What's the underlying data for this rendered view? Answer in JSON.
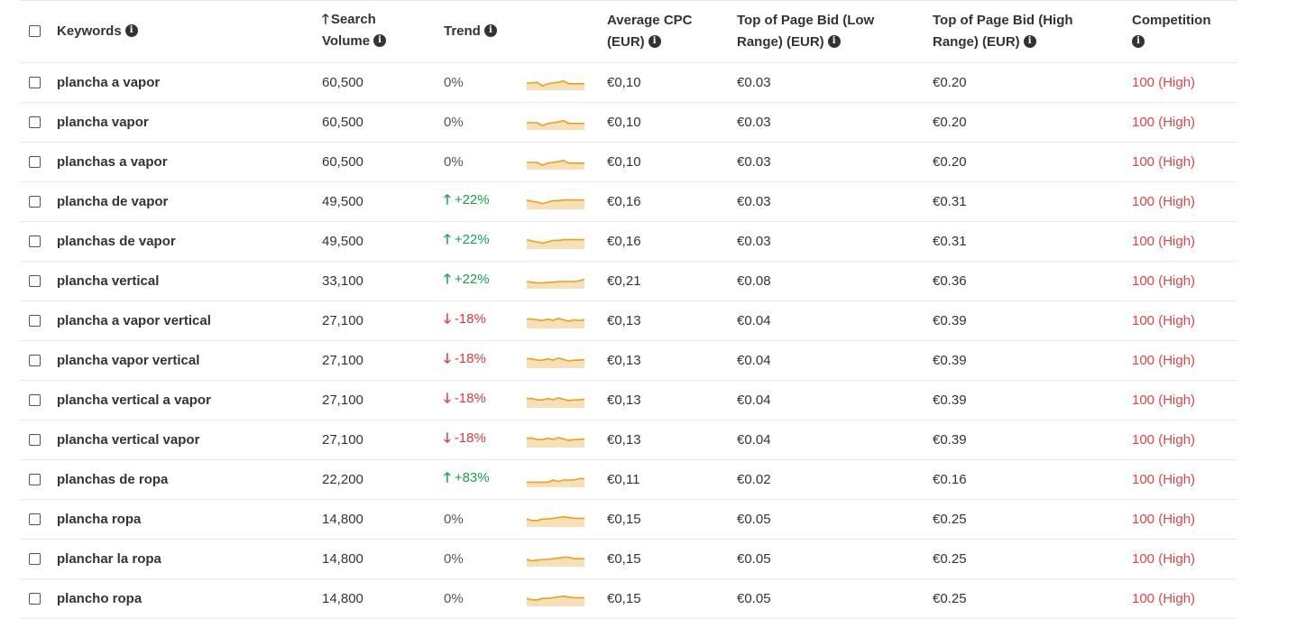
{
  "headers": {
    "keywords": "Keywords",
    "search_volume_line1": "Search",
    "search_volume_line2": "Volume",
    "trend": "Trend",
    "avg_cpc_line1": "Average CPC",
    "avg_cpc_line2": "(EUR)",
    "low_bid_line1": "Top of Page Bid (Low",
    "low_bid_line2": "Range) (EUR)",
    "high_bid_line1": "Top of Page Bid (High",
    "high_bid_line2": "Range) (EUR)",
    "competition": "Competition"
  },
  "icons": {
    "info": "info-icon",
    "sort": "arrow-up-icon",
    "trend_up": "arrow-up-icon",
    "trend_down": "arrow-down-icon"
  },
  "colors": {
    "trend_up": "#16a34a",
    "trend_down": "#dc3b3b",
    "competition_high": "#e04545",
    "sparkline_line": "#e8a21c",
    "sparkline_fill": "#f7dfb8"
  },
  "rows": [
    {
      "keyword": "plancha a vapor",
      "volume": "60,500",
      "trend": "0%",
      "dir": "flat",
      "cpc": "€0,10",
      "low": "€0.03",
      "high": "€0.20",
      "competition": "100 (High)",
      "spark": [
        0.5,
        0.5,
        0.45,
        0.7,
        0.55,
        0.5,
        0.45,
        0.35,
        0.55,
        0.55,
        0.55,
        0.55
      ]
    },
    {
      "keyword": "plancha vapor",
      "volume": "60,500",
      "trend": "0%",
      "dir": "flat",
      "cpc": "€0,10",
      "low": "€0.03",
      "high": "€0.20",
      "competition": "100 (High)",
      "spark": [
        0.5,
        0.5,
        0.5,
        0.7,
        0.55,
        0.5,
        0.45,
        0.35,
        0.55,
        0.55,
        0.55,
        0.55
      ]
    },
    {
      "keyword": "planchas a vapor",
      "volume": "60,500",
      "trend": "0%",
      "dir": "flat",
      "cpc": "€0,10",
      "low": "€0.03",
      "high": "€0.20",
      "competition": "100 (High)",
      "spark": [
        0.5,
        0.5,
        0.5,
        0.7,
        0.55,
        0.5,
        0.45,
        0.35,
        0.55,
        0.55,
        0.55,
        0.55
      ]
    },
    {
      "keyword": "plancha de vapor",
      "volume": "49,500",
      "trend": "+22%",
      "dir": "up",
      "cpc": "€0,16",
      "low": "€0.03",
      "high": "€0.31",
      "competition": "100 (High)",
      "spark": [
        0.35,
        0.45,
        0.5,
        0.6,
        0.5,
        0.4,
        0.4,
        0.35,
        0.35,
        0.35,
        0.35,
        0.35
      ]
    },
    {
      "keyword": "planchas de vapor",
      "volume": "49,500",
      "trend": "+22%",
      "dir": "up",
      "cpc": "€0,16",
      "low": "€0.03",
      "high": "€0.31",
      "competition": "100 (High)",
      "spark": [
        0.35,
        0.45,
        0.5,
        0.6,
        0.5,
        0.4,
        0.4,
        0.35,
        0.35,
        0.35,
        0.35,
        0.35
      ]
    },
    {
      "keyword": "plancha vertical",
      "volume": "33,100",
      "trend": "+22%",
      "dir": "up",
      "cpc": "€0,21",
      "low": "€0.08",
      "high": "€0.36",
      "competition": "100 (High)",
      "spark": [
        0.5,
        0.55,
        0.6,
        0.6,
        0.55,
        0.55,
        0.5,
        0.5,
        0.5,
        0.5,
        0.45,
        0.35
      ]
    },
    {
      "keyword": "plancha a vapor vertical",
      "volume": "27,100",
      "trend": "-18%",
      "dir": "down",
      "cpc": "€0,13",
      "low": "€0.04",
      "high": "€0.39",
      "competition": "100 (High)",
      "spark": [
        0.35,
        0.35,
        0.4,
        0.45,
        0.35,
        0.45,
        0.3,
        0.4,
        0.5,
        0.4,
        0.45,
        0.4
      ]
    },
    {
      "keyword": "plancha vapor vertical",
      "volume": "27,100",
      "trend": "-18%",
      "dir": "down",
      "cpc": "€0,13",
      "low": "€0.04",
      "high": "€0.39",
      "competition": "100 (High)",
      "spark": [
        0.35,
        0.35,
        0.45,
        0.45,
        0.35,
        0.45,
        0.3,
        0.4,
        0.5,
        0.45,
        0.45,
        0.4
      ]
    },
    {
      "keyword": "plancha vertical a vapor",
      "volume": "27,100",
      "trend": "-18%",
      "dir": "down",
      "cpc": "€0,13",
      "low": "€0.04",
      "high": "€0.39",
      "competition": "100 (High)",
      "spark": [
        0.35,
        0.35,
        0.45,
        0.45,
        0.35,
        0.45,
        0.3,
        0.4,
        0.5,
        0.45,
        0.45,
        0.4
      ]
    },
    {
      "keyword": "plancha vertical vapor",
      "volume": "27,100",
      "trend": "-18%",
      "dir": "down",
      "cpc": "€0,13",
      "low": "€0.04",
      "high": "€0.39",
      "competition": "100 (High)",
      "spark": [
        0.35,
        0.35,
        0.45,
        0.45,
        0.35,
        0.45,
        0.3,
        0.4,
        0.5,
        0.45,
        0.45,
        0.4
      ]
    },
    {
      "keyword": "planchas de ropa",
      "volume": "22,200",
      "trend": "+83%",
      "dir": "up",
      "cpc": "€0,11",
      "low": "€0.02",
      "high": "€0.16",
      "competition": "100 (High)",
      "spark": [
        0.65,
        0.65,
        0.65,
        0.65,
        0.65,
        0.5,
        0.6,
        0.5,
        0.5,
        0.5,
        0.4,
        0.4
      ]
    },
    {
      "keyword": "plancha ropa",
      "volume": "14,800",
      "trend": "0%",
      "dir": "flat",
      "cpc": "€0,15",
      "low": "€0.05",
      "high": "€0.25",
      "competition": "100 (High)",
      "spark": [
        0.45,
        0.55,
        0.55,
        0.45,
        0.45,
        0.4,
        0.35,
        0.3,
        0.35,
        0.4,
        0.4,
        0.4
      ]
    },
    {
      "keyword": "planchar la ropa",
      "volume": "14,800",
      "trend": "0%",
      "dir": "flat",
      "cpc": "€0,15",
      "low": "€0.05",
      "high": "€0.25",
      "competition": "100 (High)",
      "spark": [
        0.5,
        0.6,
        0.55,
        0.5,
        0.5,
        0.45,
        0.4,
        0.35,
        0.35,
        0.45,
        0.45,
        0.45
      ]
    },
    {
      "keyword": "plancho ropa",
      "volume": "14,800",
      "trend": "0%",
      "dir": "flat",
      "cpc": "€0,15",
      "low": "€0.05",
      "high": "€0.25",
      "competition": "100 (High)",
      "spark": [
        0.45,
        0.55,
        0.55,
        0.45,
        0.45,
        0.4,
        0.35,
        0.3,
        0.35,
        0.4,
        0.4,
        0.4
      ]
    }
  ]
}
